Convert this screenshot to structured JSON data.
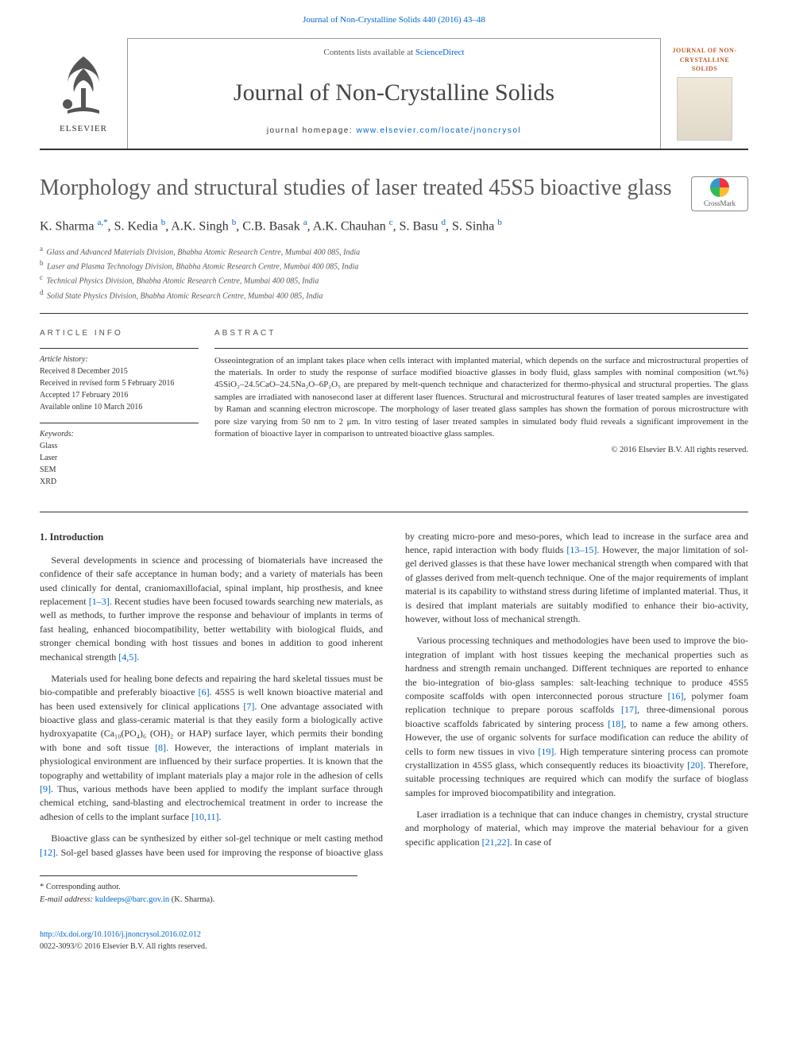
{
  "top_link": "Journal of Non-Crystalline Solids 440 (2016) 43–48",
  "header": {
    "contents_prefix": "Contents lists available at ",
    "contents_link": "ScienceDirect",
    "journal_name": "Journal of Non-Crystalline Solids",
    "homepage_prefix": "journal homepage: ",
    "homepage_url": "www.elsevier.com/locate/jnoncrysol",
    "elsevier_label": "ELSEVIER",
    "cover_text": "JOURNAL OF NON-CRYSTALLINE SOLIDS"
  },
  "crossmark_label": "CrossMark",
  "article": {
    "title": "Morphology and structural studies of laser treated 45S5 bioactive glass",
    "authors_html": "K. Sharma <sup class='sup'>a,*</sup>, S. Kedia <sup class='sup'>b</sup>, A.K. Singh <sup class='sup'>b</sup>, C.B. Basak <sup class='sup'>a</sup>, A.K. Chauhan <sup class='sup'>c</sup>, S. Basu <sup class='sup'>d</sup>, S. Sinha <sup class='sup'>b</sup>",
    "affiliations": [
      {
        "sup": "a",
        "text": "Glass and Advanced Materials Division, Bhabha Atomic Research Centre, Mumbai 400 085, India"
      },
      {
        "sup": "b",
        "text": "Laser and Plasma Technology Division, Bhabha Atomic Research Centre, Mumbai 400 085, India"
      },
      {
        "sup": "c",
        "text": "Technical Physics Division, Bhabha Atomic Research Centre, Mumbai 400 085, India"
      },
      {
        "sup": "d",
        "text": "Solid State Physics Division, Bhabha Atomic Research Centre, Mumbai 400 085, India"
      }
    ]
  },
  "info": {
    "head": "ARTICLE INFO",
    "history_label": "Article history:",
    "history": [
      "Received 8 December 2015",
      "Received in revised form 5 February 2016",
      "Accepted 17 February 2016",
      "Available online 10 March 2016"
    ],
    "keywords_label": "Keywords:",
    "keywords": [
      "Glass",
      "Laser",
      "SEM",
      "XRD"
    ]
  },
  "abstract": {
    "head": "ABSTRACT",
    "body": "Osseointegration of an implant takes place when cells interact with implanted material, which depends on the surface and microstructural properties of the materials. In order to study the response of surface modified bioactive glasses in body fluid, glass samples with nominal composition (wt.%) 45SiO₂–24.5CaO–24.5Na₂O–6P₂O₅ are prepared by melt-quench technique and characterized for thermo-physical and structural properties. The glass samples are irradiated with nanosecond laser at different laser fluences. Structural and microstructural features of laser treated samples are investigated by Raman and scanning electron microscope. The morphology of laser treated glass samples has shown the formation of porous microstructure with pore size varying from 50 nm to 2 μm. In vitro testing of laser treated samples in simulated body fluid reveals a significant improvement in the formation of bioactive layer in comparison to untreated bioactive glass samples.",
    "copyright": "© 2016 Elsevier B.V. All rights reserved."
  },
  "sections": {
    "intro_title": "1. Introduction",
    "paragraphs": [
      "Several developments in science and processing of biomaterials have increased the confidence of their safe acceptance in human body; and a variety of materials has been used clinically for dental, craniomaxillofacial, spinal implant, hip prosthesis, and knee replacement [1–3]. Recent studies have been focused towards searching new materials, as well as methods, to further improve the response and behaviour of implants in terms of fast healing, enhanced biocompatibility, better wettability with biological fluids, and stronger chemical bonding with host tissues and bones in addition to good inherent mechanical strength [4,5].",
      "Materials used for healing bone defects and repairing the hard skeletal tissues must be bio-compatible and preferably bioactive [6]. 45S5 is well known bioactive material and has been used extensively for clinical applications [7]. One advantage associated with bioactive glass and glass-ceramic material is that they easily form a biologically active hydroxyapatite (Ca₁₀(PO₄)₆ (OH)₂ or HAP) surface layer, which permits their bonding with bone and soft tissue [8]. However, the interactions of implant materials in physiological environment are influenced by their surface properties. It is known that the topography and wettability of implant materials play a major role in the adhesion of cells [9]. Thus, various methods have been applied to modify the implant surface through chemical etching, sand-blasting and electrochemical treatment in order to increase the adhesion of cells to the implant surface [10,11].",
      "Bioactive glass can be synthesized by either sol-gel technique or melt casting method [12]. Sol-gel based glasses have been used for improving the response of bioactive glass by creating micro-pore and meso-pores, which lead to increase in the surface area and hence, rapid interaction with body fluids [13–15]. However, the major limitation of sol-gel derived glasses is that these have lower mechanical strength when compared with that of glasses derived from melt-quench technique. One of the major requirements of implant material is its capability to withstand stress during lifetime of implanted material. Thus, it is desired that implant materials are suitably modified to enhance their bio-activity, however, without loss of mechanical strength.",
      "Various processing techniques and methodologies have been used to improve the bio-integration of implant with host tissues keeping the mechanical properties such as hardness and strength remain unchanged. Different techniques are reported to enhance the bio-integration of bio-glass samples: salt-leaching technique to produce 45S5 composite scaffolds with open interconnected porous structure [16], polymer foam replication technique to prepare porous scaffolds [17], three-dimensional porous bioactive scaffolds fabricated by sintering process [18], to name a few among others. However, the use of organic solvents for surface modification can reduce the ability of cells to form new tissues in vivo [19]. High temperature sintering process can promote crystallization in 45S5 glass, which consequently reduces its bioactivity [20]. Therefore, suitable processing techniques are required which can modify the surface of bioglass samples for improved biocompatibility and integration.",
      "Laser irradiation is a technique that can induce changes in chemistry, crystal structure and morphology of material, which may improve the material behaviour for a given specific application [21,22]. In case of"
    ],
    "refs": [
      "[1–3]",
      "[4,5]",
      "[6]",
      "[7]",
      "[8]",
      "[9]",
      "[10,11]",
      "[12]",
      "[13–15]",
      "[16]",
      "[17]",
      "[18]",
      "[19]",
      "[20]",
      "[21,22]"
    ]
  },
  "footer": {
    "corr_label": "* Corresponding author.",
    "email_label": "E-mail address: ",
    "email": "kuldeeps@barc.gov.in",
    "email_name": " (K. Sharma)."
  },
  "doi": {
    "url": "http://dx.doi.org/10.1016/j.jnoncrysol.2016.02.012",
    "issn_line": "0022-3093/© 2016 Elsevier B.V. All rights reserved."
  },
  "colors": {
    "link": "#0066cc",
    "rule": "#333333",
    "text": "#333333",
    "title": "#5a5a5a"
  },
  "typography": {
    "body_pt": 12,
    "title_pt": 28,
    "journal_pt": 30,
    "info_pt": 10,
    "abstract_pt": 11
  }
}
